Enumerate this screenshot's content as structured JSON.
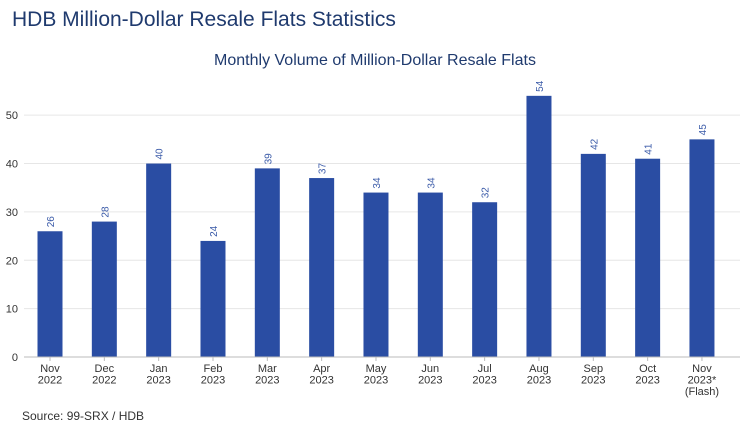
{
  "header": {
    "title": "HDB Million-Dollar Resale Flats Statistics"
  },
  "footer": {
    "source": "Source: 99-SRX / HDB"
  },
  "colors": {
    "bar": "#2a4da3",
    "title": "#1f3a6e",
    "value_label": "#3a5aa8",
    "axis_text": "#333333",
    "grid": "#e6e6e6"
  },
  "chart_data": {
    "type": "bar",
    "title": "Monthly Volume of Million-Dollar Resale Flats",
    "xlabel": "",
    "ylabel": "",
    "ylim": [
      0,
      55
    ],
    "yticks": [
      0,
      10,
      20,
      30,
      40,
      50
    ],
    "grid": true,
    "legend": "none",
    "categories": [
      [
        "Nov",
        "2022"
      ],
      [
        "Dec",
        "2022"
      ],
      [
        "Jan",
        "2023"
      ],
      [
        "Feb",
        "2023"
      ],
      [
        "Mar",
        "2023"
      ],
      [
        "Apr",
        "2023"
      ],
      [
        "May",
        "2023"
      ],
      [
        "Jun",
        "2023"
      ],
      [
        "Jul",
        "2023"
      ],
      [
        "Aug",
        "2023"
      ],
      [
        "Sep",
        "2023"
      ],
      [
        "Oct",
        "2023"
      ],
      [
        "Nov",
        "2023*",
        "(Flash)"
      ]
    ],
    "values": [
      26,
      28,
      40,
      24,
      39,
      37,
      34,
      34,
      32,
      54,
      42,
      41,
      45
    ]
  }
}
